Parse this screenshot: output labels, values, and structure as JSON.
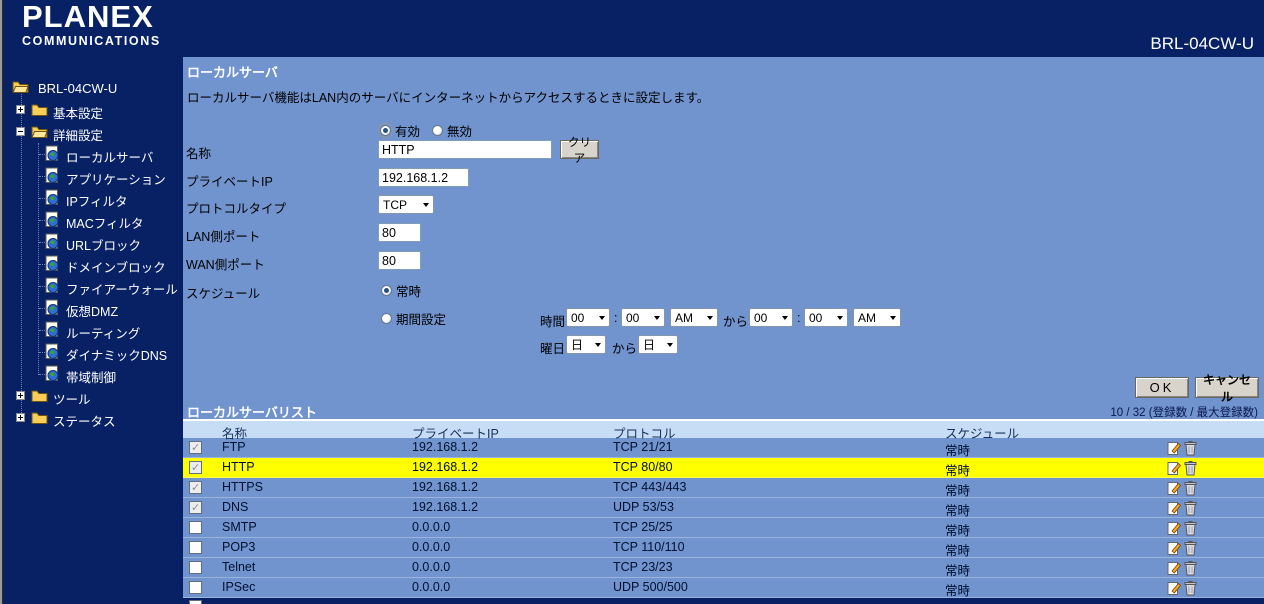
{
  "header": {
    "logo_line1": "PLANEX",
    "logo_line2": "COMMUNICATIONS",
    "model": "BRL-04CW-U"
  },
  "sidebar": {
    "root_label": "BRL-04CW-U",
    "items": [
      {
        "id": "basic-settings",
        "label": "基本設定",
        "icon": "folder-closed",
        "expand": "plus",
        "level": 1
      },
      {
        "id": "advanced-settings",
        "label": "詳細設定",
        "icon": "folder-open",
        "expand": "minus",
        "level": 1
      },
      {
        "id": "local-server",
        "label": "ローカルサーバ",
        "icon": "doc",
        "level": 2
      },
      {
        "id": "application",
        "label": "アプリケーション",
        "icon": "doc",
        "level": 2
      },
      {
        "id": "ip-filter",
        "label": "IPフィルタ",
        "icon": "doc",
        "level": 2
      },
      {
        "id": "mac-filter",
        "label": "MACフィルタ",
        "icon": "doc",
        "level": 2
      },
      {
        "id": "url-block",
        "label": "URLブロック",
        "icon": "doc",
        "level": 2
      },
      {
        "id": "domain-block",
        "label": "ドメインブロック",
        "icon": "doc",
        "level": 2
      },
      {
        "id": "firewall",
        "label": "ファイアーウォール",
        "icon": "doc",
        "level": 2
      },
      {
        "id": "virtual-dmz",
        "label": "仮想DMZ",
        "icon": "doc",
        "level": 2
      },
      {
        "id": "routing",
        "label": "ルーティング",
        "icon": "doc",
        "level": 2
      },
      {
        "id": "dynamic-dns",
        "label": "ダイナミックDNS",
        "icon": "doc",
        "level": 2
      },
      {
        "id": "bandwidth-control",
        "label": "帯域制御",
        "icon": "doc",
        "level": 2
      },
      {
        "id": "tools",
        "label": "ツール",
        "icon": "folder-closed",
        "expand": "plus",
        "level": 1
      },
      {
        "id": "status",
        "label": "ステータス",
        "icon": "folder-closed",
        "expand": "plus",
        "level": 1
      }
    ]
  },
  "main": {
    "title": "ローカルサーバ",
    "description": "ローカルサーバ機能はLAN内のサーバにインターネットからアクセスするときに設定します。",
    "enable_on": "有効",
    "enable_off": "無効",
    "fields": {
      "name_label": "名称",
      "name_value": "HTTP",
      "clear_button": "クリア",
      "private_ip_label": "プライベートIP",
      "private_ip_value": "192.168.1.2",
      "protocol_label": "プロトコルタイプ",
      "protocol_value": "TCP",
      "lan_port_label": "LAN側ポート",
      "lan_port_value": "80",
      "wan_port_label": "WAN側ポート",
      "wan_port_value": "80",
      "schedule_label": "スケジュール",
      "schedule_always": "常時",
      "schedule_period": "期間設定",
      "time_label": "時間",
      "from_label": "から",
      "day_label": "曜日",
      "time_separator": ":",
      "hour_from": "00",
      "minute_from": "00",
      "ampm_from": "AM",
      "hour_to": "00",
      "minute_to": "00",
      "ampm_to": "AM",
      "weekday_from": "日",
      "weekday_to": "日"
    },
    "buttons": {
      "ok": "OK",
      "cancel": "キャンセル"
    },
    "list": {
      "title": "ローカルサーバリスト",
      "count": "10 / 32 (登録数 / 最大登録数)",
      "columns": [
        "名称",
        "プライベートIP",
        "プロトコル",
        "スケジュール"
      ],
      "rows": [
        {
          "checked": true,
          "name": "FTP",
          "ip": "192.168.1.2",
          "protocol": "TCP 21/21",
          "schedule": "常時",
          "highlight": false
        },
        {
          "checked": true,
          "name": "HTTP",
          "ip": "192.168.1.2",
          "protocol": "TCP 80/80",
          "schedule": "常時",
          "highlight": true
        },
        {
          "checked": true,
          "name": "HTTPS",
          "ip": "192.168.1.2",
          "protocol": "TCP 443/443",
          "schedule": "常時",
          "highlight": false
        },
        {
          "checked": true,
          "name": "DNS",
          "ip": "192.168.1.2",
          "protocol": "UDP 53/53",
          "schedule": "常時",
          "highlight": false
        },
        {
          "checked": false,
          "name": "SMTP",
          "ip": "0.0.0.0",
          "protocol": "TCP 25/25",
          "schedule": "常時",
          "highlight": false
        },
        {
          "checked": false,
          "name": "POP3",
          "ip": "0.0.0.0",
          "protocol": "TCP 110/110",
          "schedule": "常時",
          "highlight": false
        },
        {
          "checked": false,
          "name": "Telnet",
          "ip": "0.0.0.0",
          "protocol": "TCP 23/23",
          "schedule": "常時",
          "highlight": false
        },
        {
          "checked": false,
          "name": "IPSec",
          "ip": "0.0.0.0",
          "protocol": "UDP 500/500",
          "schedule": "常時",
          "highlight": false
        }
      ]
    }
  },
  "colors": {
    "header_navy": "#082164",
    "content_blue": "#7193ce",
    "table_header_blue": "#c7dcf5",
    "highlight_yellow": "#ffff00",
    "title_text_white": "#ffffff"
  }
}
